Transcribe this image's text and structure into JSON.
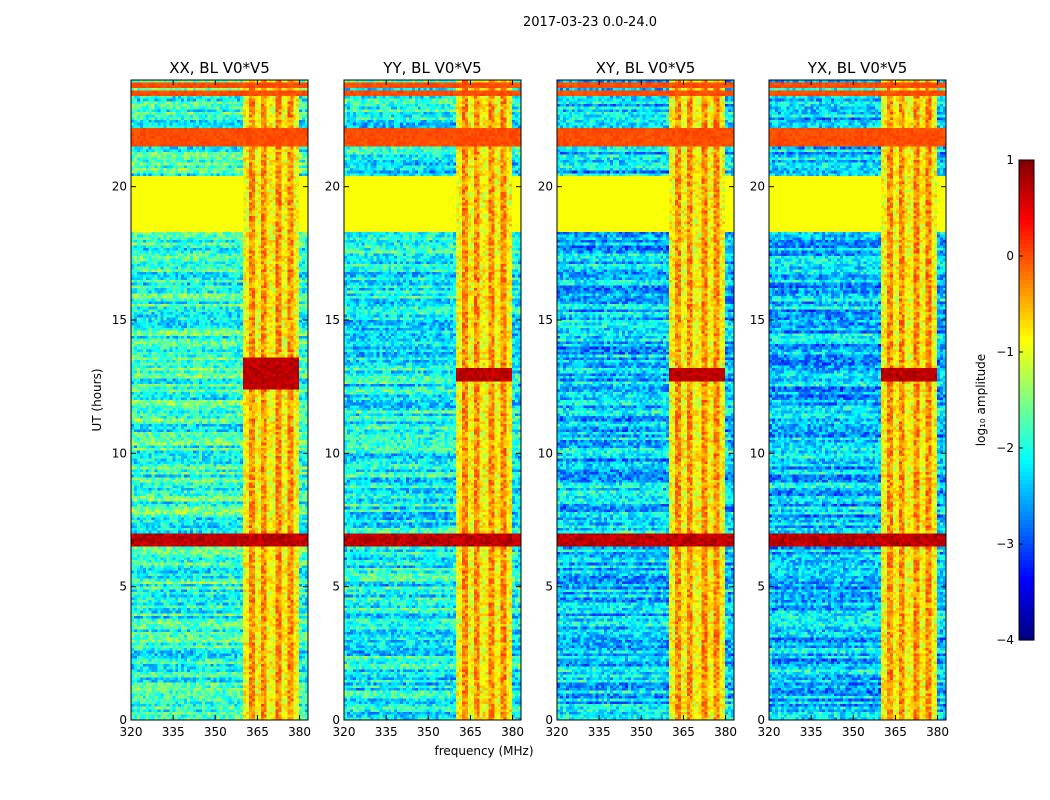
{
  "chart_data": {
    "type": "heatmap",
    "suptitle": "2017-03-23 0.0-24.0",
    "xlabel": "frequency (MHz)",
    "ylabel": "UT (hours)",
    "xlim": [
      320,
      383
    ],
    "ylim": [
      0,
      24
    ],
    "xticks": [
      "320",
      "335",
      "350",
      "365",
      "380"
    ],
    "xtick_values": [
      320,
      335,
      350,
      365,
      380
    ],
    "yticks": [
      "0",
      "5",
      "10",
      "15",
      "20"
    ],
    "ytick_values": [
      0,
      5,
      10,
      15,
      20
    ],
    "colormap": "jet",
    "colorbar": {
      "label": "log₁₀ amplitude",
      "range": [
        -4,
        1
      ],
      "ticks": [
        "1",
        "0",
        "−1",
        "−2",
        "−3",
        "−4"
      ],
      "tick_values": [
        1,
        0,
        -1,
        -2,
        -3,
        -4
      ],
      "colors": [
        "#00008f",
        "#0000ff",
        "#007fff",
        "#00ffff",
        "#7fff7f",
        "#ffff00",
        "#ff7f00",
        "#ff0000",
        "#7f0000"
      ]
    },
    "panels": [
      {
        "title": "XX, BL V0*V5",
        "rfi_band_mhz": [
          360,
          380
        ],
        "quiet_level": -1.9,
        "strong_hours": [
          12.4,
          13.6
        ]
      },
      {
        "title": "YY, BL V0*V5",
        "rfi_band_mhz": [
          360,
          380
        ],
        "quiet_level": -2.1,
        "strong_hours": [
          12.7,
          13.2
        ]
      },
      {
        "title": "XY, BL V0*V5",
        "rfi_band_mhz": [
          360,
          380
        ],
        "quiet_level": -2.4,
        "strong_hours": [
          12.7,
          13.2
        ]
      },
      {
        "title": "YX, BL V0*V5",
        "rfi_band_mhz": [
          360,
          380
        ],
        "quiet_level": -2.4,
        "strong_hours": [
          12.7,
          13.2
        ]
      }
    ],
    "flagged_hours": [
      18.3,
      20.4
    ],
    "flagged_level": -0.9,
    "rfi_hours": [
      [
        21.5,
        22.2
      ],
      [
        23.4,
        23.6
      ],
      [
        23.7,
        23.9
      ]
    ],
    "bright_hours": [
      [
        6.5,
        7.0
      ]
    ]
  }
}
